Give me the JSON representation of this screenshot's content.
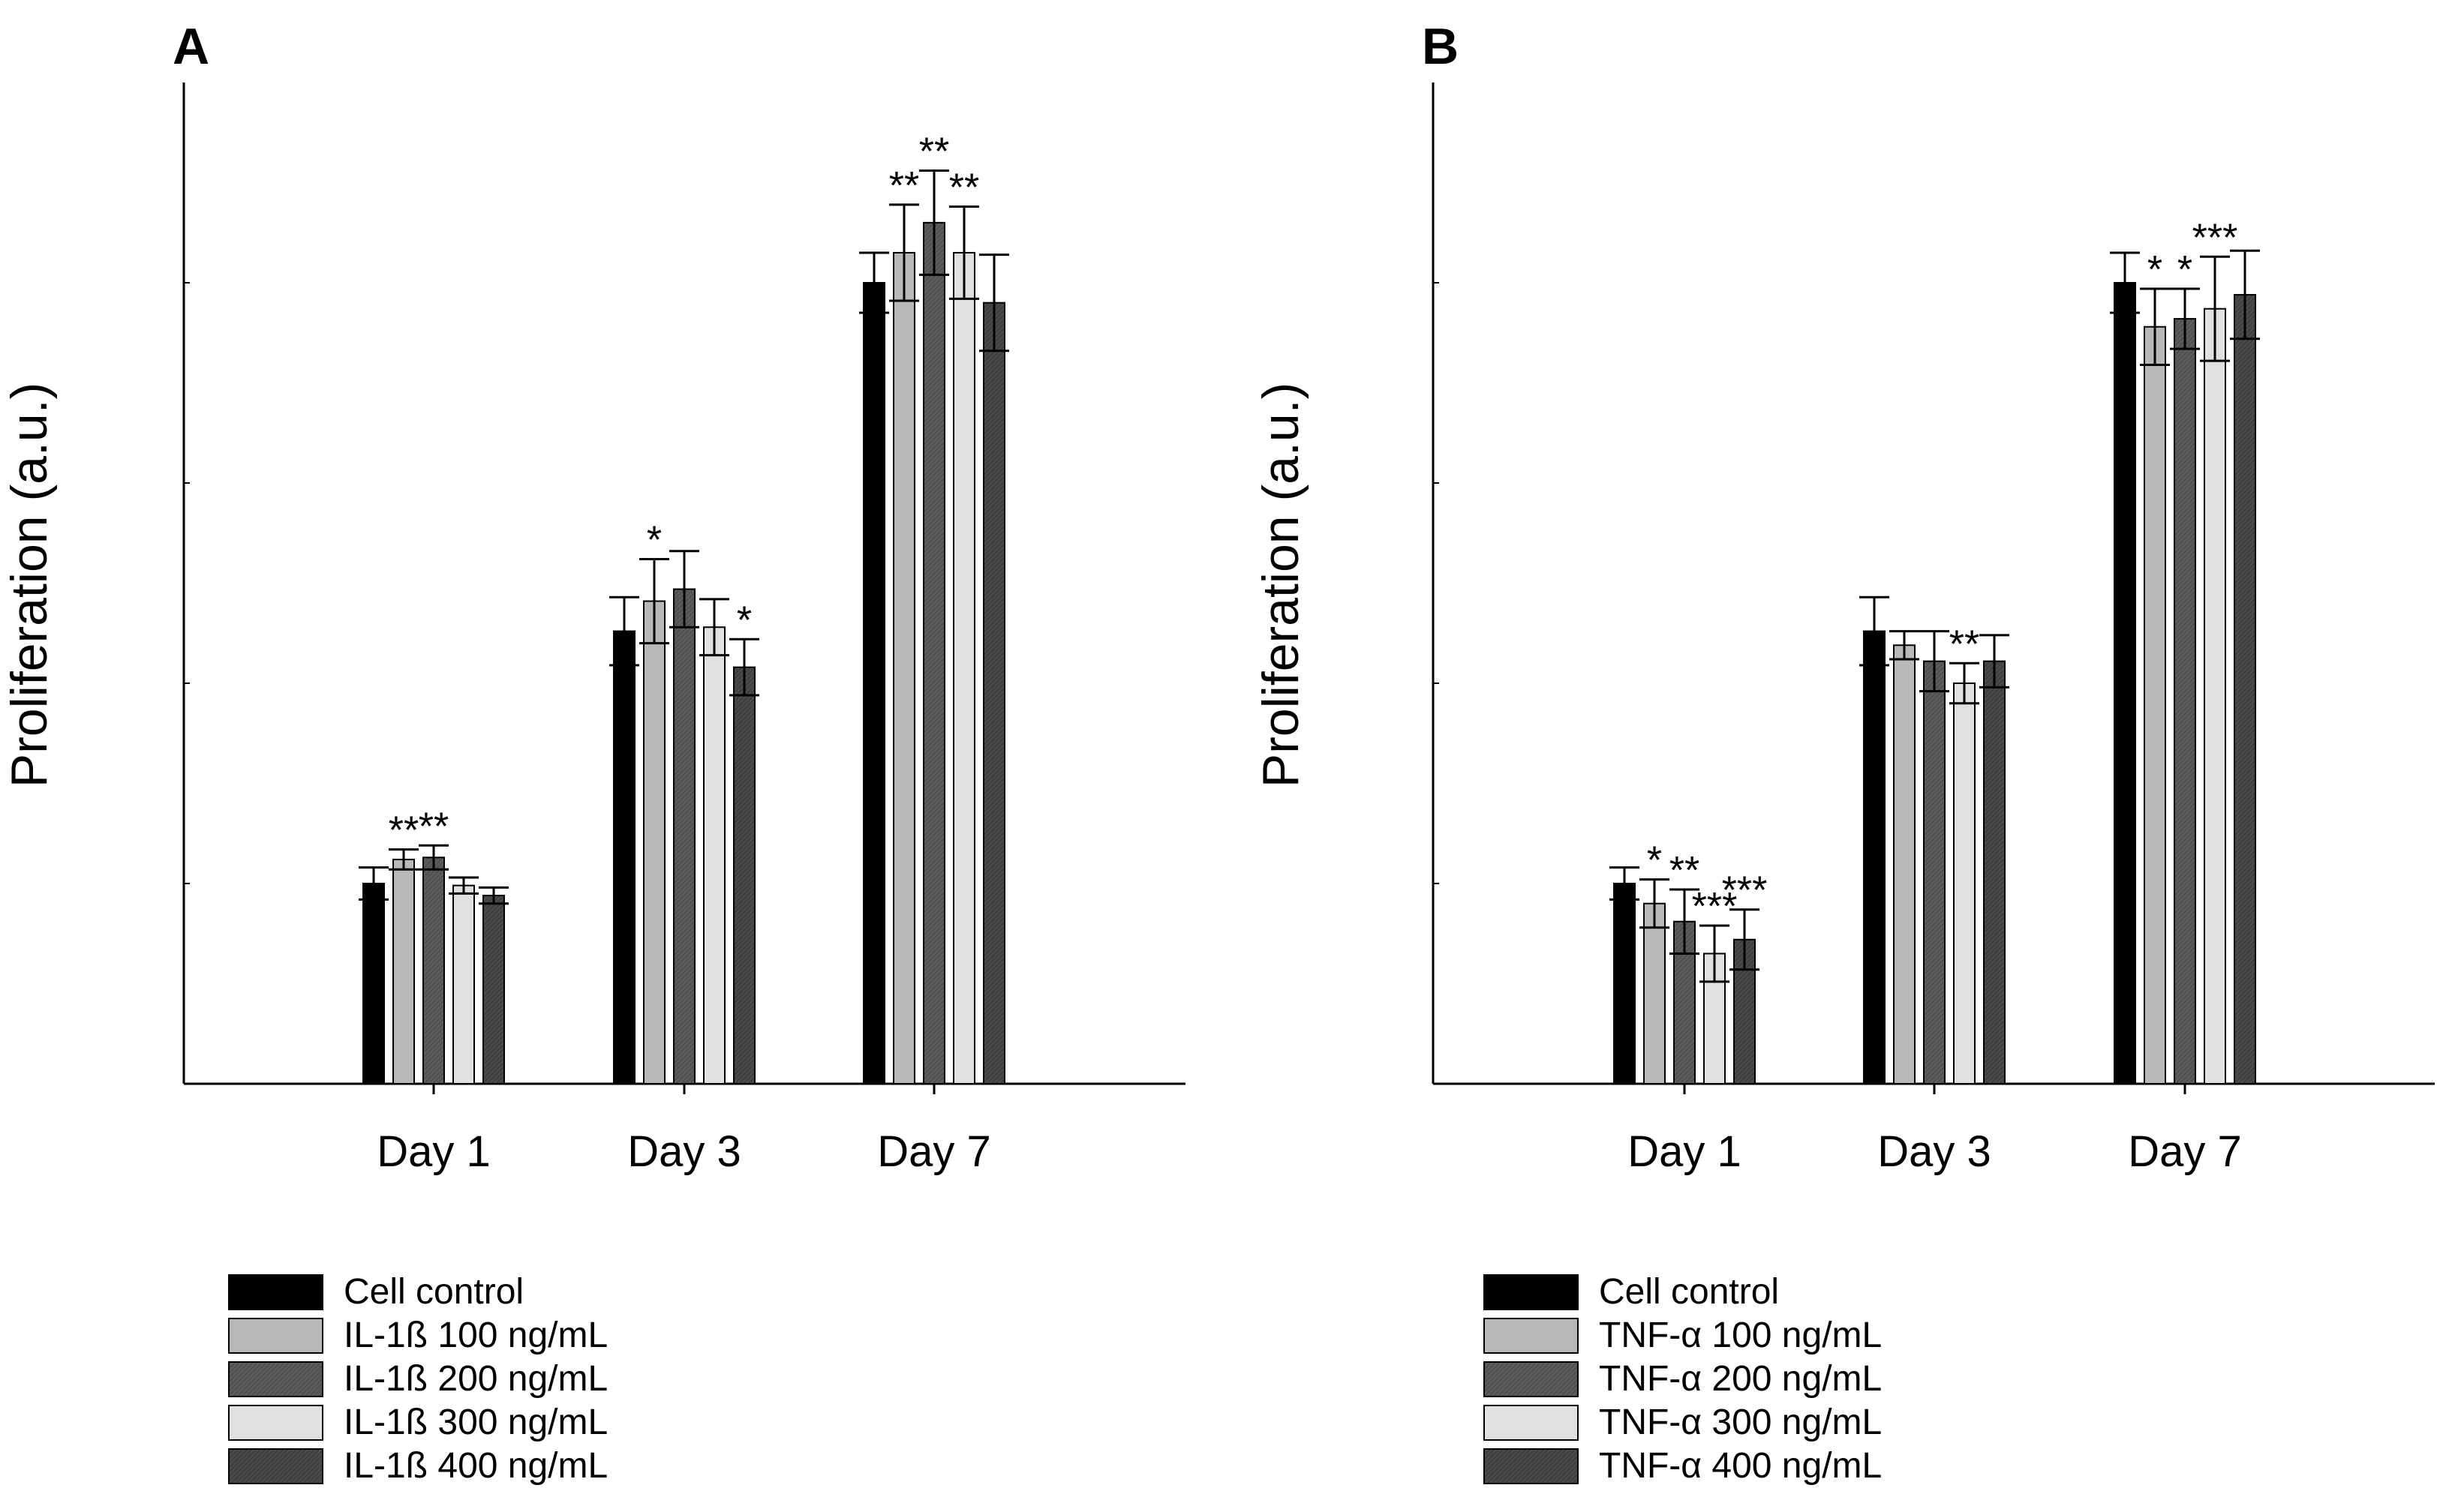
{
  "chart_data": [
    {
      "panel": "A",
      "type": "bar",
      "ylabel": "Proliferation (a.u.)",
      "xlabel": "",
      "ylim": [
        0,
        5
      ],
      "categories": [
        "Day 1",
        "Day 3",
        "Day 7"
      ],
      "series": [
        {
          "name": "Cell control",
          "fill": "#000000",
          "values": [
            1.0,
            2.26,
            4.0
          ],
          "errors": [
            0.08,
            0.17,
            0.15
          ]
        },
        {
          "name": "IL-1ß 100 ng/mL",
          "fill": "#b8b8b8",
          "values": [
            1.12,
            2.41,
            4.15
          ],
          "errors": [
            0.05,
            0.21,
            0.24
          ]
        },
        {
          "name": "IL-1ß 200 ng/mL",
          "fill": "#5a5a5a",
          "values": [
            1.13,
            2.47,
            4.3
          ],
          "errors": [
            0.06,
            0.19,
            0.26
          ]
        },
        {
          "name": "IL-1ß 300 ng/mL",
          "fill": "#e0e0e0",
          "values": [
            0.99,
            2.28,
            4.15
          ],
          "errors": [
            0.04,
            0.14,
            0.23
          ]
        },
        {
          "name": "IL-1ß 400 ng/mL",
          "fill": "#484848",
          "values": [
            0.94,
            2.08,
            3.9
          ],
          "errors": [
            0.04,
            0.14,
            0.24
          ]
        }
      ],
      "significance": [
        [
          null,
          null,
          null
        ],
        [
          "**",
          "*",
          "**"
        ],
        [
          "**",
          null,
          "**"
        ],
        [
          null,
          null,
          "**"
        ],
        [
          null,
          "*",
          null
        ]
      ]
    },
    {
      "panel": "B",
      "type": "bar",
      "ylabel": "Proliferation (a.u.)",
      "xlabel": "",
      "ylim": [
        0,
        5
      ],
      "categories": [
        "Day 1",
        "Day 3",
        "Day 7"
      ],
      "series": [
        {
          "name": "Cell control",
          "fill": "#000000",
          "values": [
            1.0,
            2.26,
            4.0
          ],
          "errors": [
            0.08,
            0.17,
            0.15
          ]
        },
        {
          "name": "TNF-α 100 ng/mL",
          "fill": "#b8b8b8",
          "values": [
            0.9,
            2.19,
            3.78
          ],
          "errors": [
            0.12,
            0.07,
            0.19
          ]
        },
        {
          "name": "TNF-α 200 ng/mL",
          "fill": "#5a5a5a",
          "values": [
            0.81,
            2.11,
            3.82
          ],
          "errors": [
            0.16,
            0.15,
            0.15
          ]
        },
        {
          "name": "TNF-α 300 ng/mL",
          "fill": "#e0e0e0",
          "values": [
            0.65,
            2.0,
            3.87
          ],
          "errors": [
            0.14,
            0.1,
            0.26
          ]
        },
        {
          "name": "TNF-α 400 ng/mL",
          "fill": "#484848",
          "values": [
            0.72,
            2.11,
            3.94
          ],
          "errors": [
            0.15,
            0.13,
            0.22
          ]
        }
      ],
      "significance": [
        [
          null,
          null,
          null
        ],
        [
          "*",
          null,
          "*"
        ],
        [
          "**",
          null,
          "*"
        ],
        [
          "***",
          "**",
          "***"
        ],
        [
          "***",
          null,
          null
        ]
      ]
    }
  ]
}
